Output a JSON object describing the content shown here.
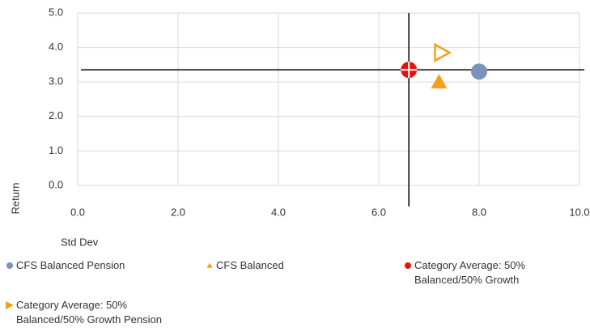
{
  "chart_data": {
    "type": "scatter",
    "xlabel": "Std Dev",
    "ylabel": "Return",
    "xlim": [
      0,
      10
    ],
    "ylim": [
      0,
      5
    ],
    "xticks": [
      {
        "value": 0,
        "label": "0.0"
      },
      {
        "value": 2,
        "label": "2.0"
      },
      {
        "value": 4,
        "label": "4.0"
      },
      {
        "value": 6,
        "label": "6.0"
      },
      {
        "value": 8,
        "label": "8.0"
      },
      {
        "value": 10,
        "label": "10.0"
      }
    ],
    "yticks": [
      {
        "value": 0,
        "label": "0.0"
      },
      {
        "value": 1,
        "label": "1.0"
      },
      {
        "value": 2,
        "label": "2.0"
      },
      {
        "value": 3,
        "label": "3.0"
      },
      {
        "value": 4,
        "label": "4.0"
      },
      {
        "value": 5,
        "label": "5.0"
      }
    ],
    "grid": true,
    "series": [
      {
        "name": "CFS Balanced Pension",
        "color": "#7b93b8",
        "marker": "circle",
        "x": [
          8.0
        ],
        "values": [
          3.3
        ]
      },
      {
        "name": "CFS Balanced",
        "color": "#f5a01a",
        "marker": "triangle",
        "x": [
          7.2
        ],
        "values": [
          3.0
        ]
      },
      {
        "name": "Category Average: 50% Balanced/50% Growth",
        "color": "#e8120c",
        "marker": "crosshair",
        "x": [
          6.6
        ],
        "values": [
          3.35
        ]
      },
      {
        "name": "Category Average: 50% Balanced/50% Growth Pension",
        "color": "#f5a01a",
        "marker": "triangle-right-open",
        "x": [
          7.25
        ],
        "values": [
          3.85
        ]
      }
    ]
  }
}
